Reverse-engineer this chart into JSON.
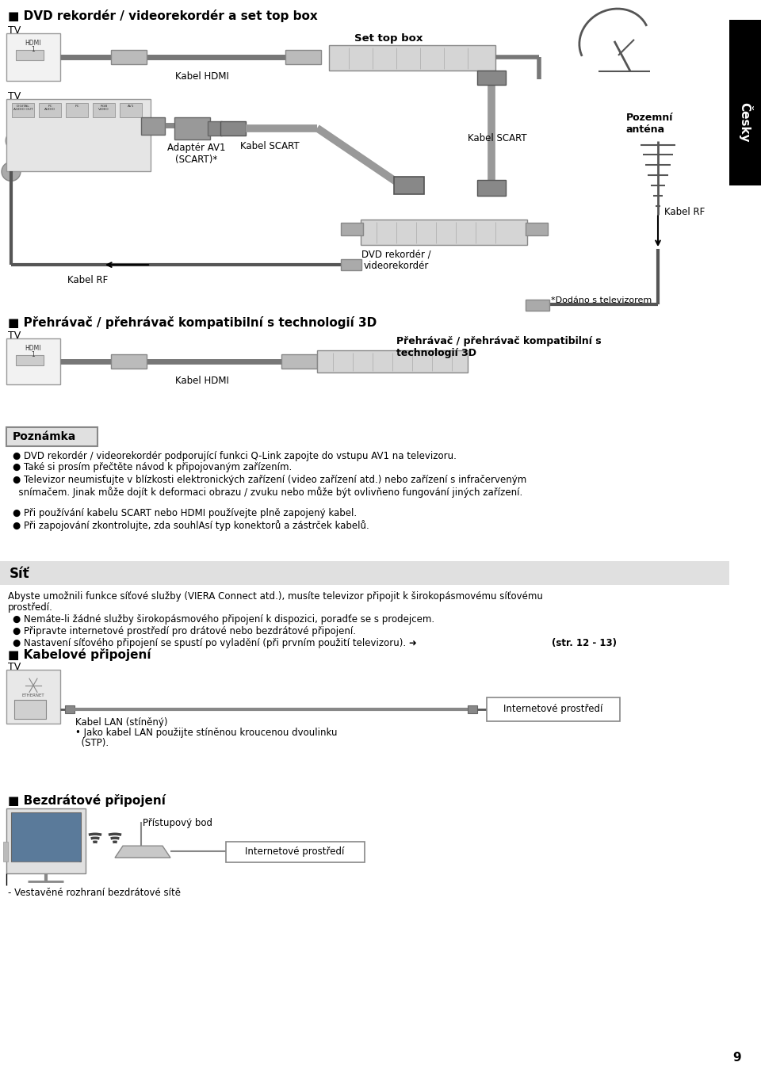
{
  "page_bg": "#ffffff",
  "title1": "■ DVD rekordér / videorekordér a set top box",
  "title2": "■ Přehrávač / přehrávač kompatibilní s technologií 3D",
  "title3": "Síť",
  "title4": "■ Kabelové připojení",
  "title5": "■ Bezdrátové připojení",
  "cesky_label": "Česky",
  "poznamka_title": "Poznámka",
  "poznamka_bullets": [
    "DVD rekordér / videorekordér podporující funkci Q-Link zapojte do vstupu AV1 na televizoru.",
    "Také si prosím přečtěte návod k připojovaným zařízením.",
    "Televizor neumisťujte v blízkosti elektronických zařízení (video zařízení atd.) nebo zařízení s infračerveným\n  snímačem. Jinak může dojít k deformaci obrazu / zvuku nebo může být ovlivňeno fungování jiných zařízení.",
    "Při používání kabelu SCART nebo HDMI používejte plně zapojený kabel.",
    "Při zapojování zkontrolujte, zda souhlAsí typ konektorů a zástrček kabelů."
  ],
  "sit_text1": "Abyste umožnili funkce síťové služby (VIERA Connect atd.), musíte televizor připojit k širokopásmovému síťovému",
  "sit_text2": "prostředí.",
  "sit_bullets": [
    "Nemáte-li žádné služby širokopásmového připojení k dispozici, poradťe se s prodejcem.",
    "Připravte internetové prostředí pro drátové nebo bezdrátové připojení.",
    "Nastavení síťového připojení se spustí po vyladění (při prvním použití televizoru). ➜",
    "(str. 12 - 13)"
  ],
  "kabel_lan": "Kabel LAN (stíněný)",
  "lan_note1": "• Jako kabel LAN použijte stíněnou kroucenou dvoulinku",
  "lan_note2": "  (STP).",
  "internetove": "Internetové prostředí",
  "pristupovy": "Přístupový bod",
  "vestav": "Vestavěné rozhraní bezdrátové sítě",
  "page_number": "9",
  "set_top_box": "Set top box",
  "kabel_hdmi": "Kabel HDMI",
  "kabel_scart": "Kabel SCART",
  "kabel_rf": "Kabel RF",
  "adaptor": "Adaptér AV1\n(SCART)*",
  "pozemni": "Pozemní\nanténa",
  "dvd_label": "DVD rekordér /\nvideorekordér",
  "dodano": "*Dodáno s televizorem",
  "prehravac_label": "Přehrávač / přehrávač kompatibilní s\ntechnologií 3D"
}
